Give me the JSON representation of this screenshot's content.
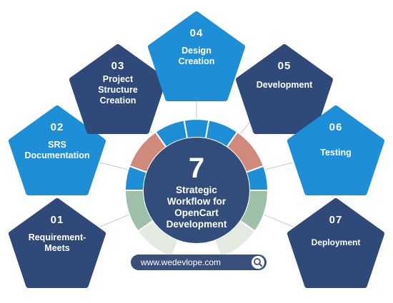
{
  "diagram": {
    "center": {
      "number": "7",
      "lines": [
        "Strategic",
        "Workflow for",
        "OpenCart",
        "Development"
      ]
    },
    "steps": [
      {
        "number": "01",
        "label_lines": [
          "Requirement-",
          "Meets"
        ]
      },
      {
        "number": "02",
        "label_lines": [
          "SRS",
          "Documentation"
        ]
      },
      {
        "number": "03",
        "label_lines": [
          "Project",
          "Structure",
          "Creation"
        ]
      },
      {
        "number": "04",
        "label_lines": [
          "Design",
          "Creation"
        ]
      },
      {
        "number": "05",
        "label_lines": [
          "Development"
        ]
      },
      {
        "number": "06",
        "label_lines": [
          "Testing"
        ]
      },
      {
        "number": "07",
        "label_lines": [
          "Deployment"
        ]
      }
    ],
    "footer": {
      "url": "www.wedevlope.com"
    }
  },
  "colors": {
    "navy": "#2f4a78",
    "sky": "#1e8fd6",
    "ring_blue": "#1e8fd6",
    "ring_salmon": "#d08a7c",
    "ring_green": "#9fbfa8",
    "ring_pale": "#e3ebe0",
    "url_bar": "#3b4f7c",
    "center": "#324d7a"
  }
}
